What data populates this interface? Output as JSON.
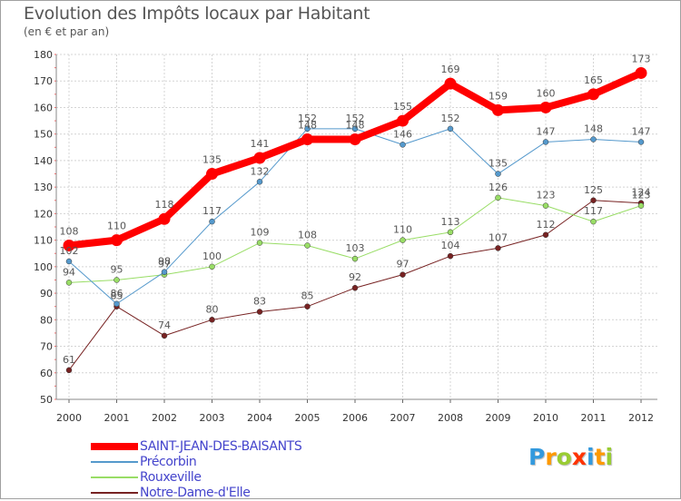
{
  "chart_data": {
    "type": "line",
    "title": "Evolution des Impôts locaux par Habitant",
    "subtitle": "(en € et par an)",
    "xlabel": "",
    "ylabel": "",
    "ylim": [
      50,
      180
    ],
    "yticks": [
      "50",
      "60",
      "70",
      "80",
      "90",
      "100",
      "110",
      "120",
      "130",
      "140",
      "150",
      "160",
      "170",
      "180"
    ],
    "categories": [
      "2000",
      "2001",
      "2002",
      "2003",
      "2004",
      "2005",
      "2006",
      "2007",
      "2008",
      "2009",
      "2010",
      "2011",
      "2012"
    ],
    "grid": true,
    "legend_position": "bottom-left",
    "series": [
      {
        "name": "SAINT-JEAN-DES-BAISANTS",
        "color": "#ff0000",
        "values": [
          108,
          110,
          118,
          135,
          141,
          148,
          148,
          155,
          169,
          159,
          160,
          165,
          173
        ],
        "labels": [
          "108",
          "110",
          "118",
          "135",
          "141",
          "148",
          "148",
          "155",
          "169",
          "159",
          "160",
          "165",
          "173"
        ]
      },
      {
        "name": "Précorbin",
        "color": "#5599cc",
        "values": [
          102,
          86,
          98,
          117,
          132,
          152,
          152,
          146,
          152,
          135,
          147,
          148,
          147
        ],
        "labels": [
          "102",
          "86",
          "98",
          "117",
          "132",
          "152",
          "152",
          "146",
          "152",
          "135",
          "147",
          "148",
          "147"
        ]
      },
      {
        "name": "Rouxeville",
        "color": "#99dd66",
        "values": [
          94,
          95,
          97,
          100,
          109,
          108,
          103,
          110,
          113,
          126,
          123,
          117,
          123
        ],
        "labels": [
          "94",
          "95",
          "97",
          "100",
          "109",
          "108",
          "103",
          "110",
          "113",
          "126",
          "123",
          "117",
          "123"
        ]
      },
      {
        "name": "Notre-Dame-d'Elle",
        "color": "#772222",
        "values": [
          61,
          85,
          74,
          80,
          83,
          85,
          92,
          97,
          104,
          107,
          112,
          125,
          124
        ],
        "labels": [
          "61",
          "85",
          "74",
          "80",
          "83",
          "85",
          "92",
          "97",
          "104",
          "107",
          "112",
          "125",
          "124"
        ]
      }
    ]
  },
  "logo": {
    "letters": [
      "P",
      "r",
      "o",
      "x",
      "i",
      "t",
      "i"
    ],
    "colors": [
      "#3399dd",
      "#ff9900",
      "#99cc33",
      "#ff3300",
      "#3399dd",
      "#ff9900",
      "#99cc33"
    ]
  }
}
